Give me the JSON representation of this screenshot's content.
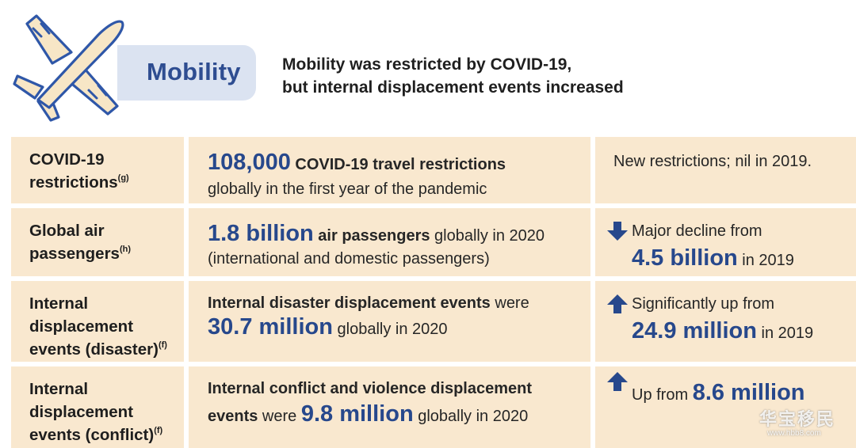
{
  "header": {
    "tag": "Mobility",
    "desc_line1": "Mobility was restricted by COVID-19,",
    "desc_line2": "but internal displacement events increased",
    "icon": "airplane-icon"
  },
  "rows": [
    {
      "label_line1": "COVID-19",
      "label_line2": "restrictions",
      "label_sup": "(g)",
      "main_big": "108,000",
      "main_bold": " COVID-19 travel restrictions",
      "main_line2": "globally in the first year of the pandemic",
      "compare": "New restrictions; nil in 2019."
    },
    {
      "label_line1": "Global air",
      "label_line2": "passengers",
      "label_sup": "(h)",
      "main_big": "1.8 billion",
      "main_bold": " air passengers",
      "main_rest": " globally in 2020",
      "main_line2": "(international and domestic passengers)",
      "compare_text": "Major decline from",
      "compare_big": "4.5 billion",
      "compare_tail": " in 2019",
      "arrow": "arrow-down-icon"
    },
    {
      "label_line1": "Internal",
      "label_line2": "displacement",
      "label_line3": "events (disaster)",
      "label_sup": "(f)",
      "main_bold": "Internal disaster displacement events",
      "main_rest": " were",
      "main_big": "30.7 million",
      "main_tail": " globally in 2020",
      "compare_text": "Significantly up from",
      "compare_big": "24.9 million",
      "compare_tail": " in 2019",
      "arrow": "arrow-up-icon"
    },
    {
      "label_line1": "Internal",
      "label_line2": "displacement",
      "label_line3": "events (conflict)",
      "label_sup": "(f)",
      "main_bold": "Internal conflict and violence displacement",
      "main_bold2": "events",
      "main_rest": " were ",
      "main_big": "9.8 million",
      "main_tail": " globally in 2020",
      "compare_text": "Up from ",
      "compare_big": "8.6 million",
      "arrow": "arrow-up-icon"
    }
  ],
  "watermark": {
    "text": "华宝移民",
    "url": "www.hbb8.com"
  },
  "colors": {
    "accent": "#27488c",
    "cell_bg": "#f9e8cf",
    "pill_bg": "#dbe3f1",
    "plane_fill": "#f7e6c6",
    "plane_stroke": "#2f57a8"
  }
}
